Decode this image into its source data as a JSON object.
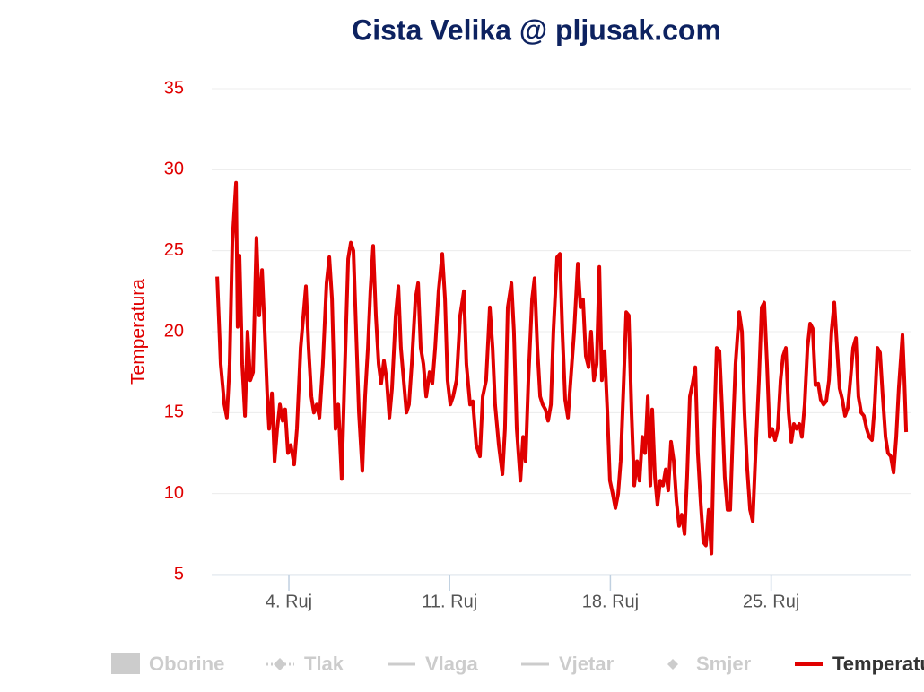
{
  "chart_data": {
    "type": "line",
    "title": "Cista Velika @ pljusak.com",
    "y_label": "Temperatura",
    "x": [
      0.88,
      1.03,
      1.19,
      1.3,
      1.42,
      1.54,
      1.7,
      1.77,
      1.85,
      1.97,
      2.09,
      2.2,
      2.32,
      2.44,
      2.59,
      2.71,
      2.83,
      2.95,
      3.06,
      3.14,
      3.26,
      3.38,
      3.49,
      3.61,
      3.73,
      3.84,
      3.96,
      4.08,
      4.23,
      4.35,
      4.51,
      4.74,
      4.86,
      4.98,
      5.09,
      5.21,
      5.33,
      5.48,
      5.64,
      5.76,
      5.88,
      6.03,
      6.15,
      6.3,
      6.42,
      6.58,
      6.7,
      6.81,
      6.93,
      7.05,
      7.2,
      7.32,
      7.44,
      7.55,
      7.67,
      7.79,
      7.91,
      8.02,
      8.14,
      8.26,
      8.38,
      8.49,
      8.65,
      8.77,
      8.88,
      9.0,
      9.12,
      9.23,
      9.35,
      9.51,
      9.63,
      9.74,
      9.86,
      9.98,
      10.13,
      10.25,
      10.37,
      10.52,
      10.68,
      10.8,
      10.91,
      11.03,
      11.15,
      11.3,
      11.46,
      11.62,
      11.73,
      11.89,
      12.01,
      12.16,
      12.32,
      12.44,
      12.59,
      12.75,
      12.87,
      12.98,
      13.14,
      13.3,
      13.41,
      13.53,
      13.69,
      13.8,
      13.92,
      14.08,
      14.2,
      14.31,
      14.43,
      14.59,
      14.7,
      14.82,
      14.94,
      15.05,
      15.17,
      15.29,
      15.41,
      15.52,
      15.68,
      15.8,
      15.91,
      16.03,
      16.15,
      16.27,
      16.42,
      16.58,
      16.7,
      16.81,
      16.93,
      17.05,
      17.16,
      17.28,
      17.4,
      17.52,
      17.63,
      17.75,
      17.87,
      17.98,
      18.1,
      18.22,
      18.34,
      18.45,
      18.57,
      18.69,
      18.8,
      18.92,
      19.04,
      19.16,
      19.27,
      19.39,
      19.51,
      19.63,
      19.74,
      19.82,
      19.94,
      20.05,
      20.17,
      20.29,
      20.41,
      20.52,
      20.64,
      20.76,
      20.88,
      20.99,
      21.11,
      21.23,
      21.34,
      21.46,
      21.58,
      21.7,
      21.81,
      21.93,
      22.05,
      22.16,
      22.28,
      22.4,
      22.52,
      22.63,
      22.75,
      22.87,
      22.98,
      23.1,
      23.22,
      23.34,
      23.45,
      23.61,
      23.73,
      23.84,
      23.96,
      24.08,
      24.2,
      24.31,
      24.47,
      24.59,
      24.7,
      24.82,
      24.94,
      25.05,
      25.17,
      25.29,
      25.41,
      25.52,
      25.64,
      25.76,
      25.88,
      25.99,
      26.11,
      26.23,
      26.34,
      26.46,
      26.58,
      26.7,
      26.81,
      26.93,
      27.05,
      27.16,
      27.28,
      27.4,
      27.52,
      27.63,
      27.75,
      27.87,
      27.98,
      28.1,
      28.22,
      28.34,
      28.45,
      28.57,
      28.69,
      28.8,
      28.92,
      29.04,
      29.16,
      29.27,
      29.39,
      29.51,
      29.63,
      29.74,
      29.86,
      29.98,
      30.09,
      30.21,
      30.33,
      30.45,
      30.56,
      30.72,
      30.8,
      30.88
    ],
    "series": [
      {
        "name": "Temperatura",
        "color": "#e00000",
        "values": [
          23.4,
          18,
          15.5,
          14.7,
          18,
          25.5,
          29.2,
          20.3,
          24.7,
          18,
          14.8,
          20,
          17,
          17.5,
          25.8,
          21,
          23.8,
          20,
          16,
          14,
          16.2,
          12,
          14,
          15.5,
          14.5,
          15.2,
          12.5,
          13,
          11.8,
          14,
          19,
          22.8,
          19,
          16,
          15,
          15.5,
          14.7,
          18,
          23,
          24.6,
          22,
          14,
          15.5,
          10.9,
          17,
          24.5,
          25.5,
          25,
          20,
          15,
          11.4,
          16,
          19,
          22.5,
          25.3,
          21,
          18,
          16.8,
          18.2,
          17,
          14.7,
          16.5,
          21,
          22.8,
          19,
          17,
          15,
          15.5,
          18,
          22,
          23,
          19,
          18,
          16,
          17.5,
          16.8,
          19,
          22.5,
          24.8,
          22,
          17,
          15.5,
          16,
          17,
          21,
          22.5,
          18,
          15.5,
          15.7,
          13,
          12.3,
          16,
          17,
          21.5,
          19,
          15.5,
          13,
          11.2,
          14,
          21.5,
          23,
          20,
          14,
          10.8,
          13.5,
          12,
          17,
          22,
          23.3,
          19,
          16,
          15.5,
          15.2,
          14.5,
          15.5,
          20,
          24.6,
          24.8,
          20,
          15.8,
          14.7,
          17,
          20,
          24.2,
          21.5,
          22,
          18.5,
          17.8,
          20,
          17,
          18,
          24,
          17,
          18.8,
          15,
          10.8,
          10,
          9.1,
          10,
          12,
          16.5,
          21.2,
          21,
          15,
          10.5,
          12,
          10.8,
          13.5,
          12.5,
          16,
          10.5,
          15.2,
          11,
          9.3,
          10.8,
          10.5,
          11.5,
          10.2,
          13.2,
          12,
          9.5,
          8,
          8.7,
          7.5,
          11,
          16,
          16.8,
          17.8,
          12.5,
          9.5,
          7,
          6.8,
          9,
          6.3,
          14,
          19,
          18.8,
          15,
          11,
          9,
          9,
          14,
          18,
          21.2,
          20,
          15,
          11.5,
          9,
          8.3,
          12,
          17,
          21.5,
          21.8,
          18,
          13.5,
          14,
          13.3,
          14,
          17,
          18.5,
          19,
          15,
          13.2,
          14.3,
          14,
          14.3,
          13.5,
          15.5,
          19,
          20.5,
          20.2,
          16.7,
          16.8,
          15.8,
          15.5,
          15.7,
          17,
          20,
          21.8,
          19,
          16.5,
          15.8,
          14.8,
          15.3,
          17,
          19,
          19.6,
          16,
          15,
          14.8,
          14,
          13.5,
          13.3,
          15.5,
          19,
          18.7,
          16,
          13.5,
          12.5,
          12.3,
          11.3,
          13.5,
          16.5,
          19.8,
          17,
          13.8
        ]
      }
    ],
    "hidden_series": [
      {
        "name": "Oborine",
        "symbol": "square"
      },
      {
        "name": "Tlak",
        "symbol": "dotted-diamond"
      },
      {
        "name": "Vlaga",
        "symbol": "line"
      },
      {
        "name": "Vjetar",
        "symbol": "line"
      },
      {
        "name": "Smjer",
        "symbol": "diamond"
      }
    ],
    "xlim": [
      0.64,
      31.07
    ],
    "xticks": [
      {
        "value": 4,
        "label": "4. Ruj"
      },
      {
        "value": 11,
        "label": "11. Ruj"
      },
      {
        "value": 18,
        "label": "18. Ruj"
      },
      {
        "value": 25,
        "label": "25. Ruj"
      }
    ],
    "ylim": [
      5,
      35
    ],
    "yticks": [
      5,
      10,
      15,
      20,
      25,
      30,
      35
    ],
    "grid": true
  }
}
